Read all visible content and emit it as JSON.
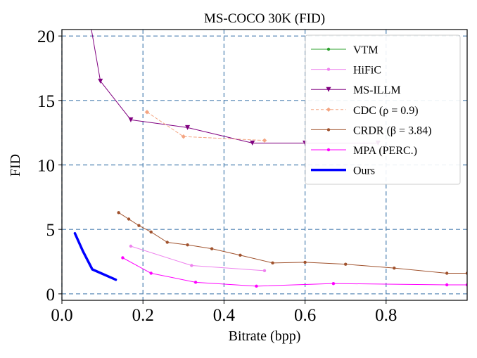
{
  "chart_data": {
    "type": "line",
    "title": "MS-COCO 30K (FID)",
    "xlabel": "Bitrate (bpp)",
    "ylabel": "FID",
    "xlim": [
      0.0,
      1.0
    ],
    "ylim": [
      -0.5,
      20.5
    ],
    "x_ticks": [
      0.0,
      0.2,
      0.4,
      0.6,
      0.8
    ],
    "y_ticks": [
      0,
      5,
      10,
      15,
      20
    ],
    "x_tick_labels": [
      "0.0",
      "0.2",
      "0.4",
      "0.6",
      "0.8"
    ],
    "y_tick_labels": [
      "0",
      "5",
      "10",
      "15",
      "20"
    ],
    "grid": true,
    "legend_position": "top-right",
    "series": [
      {
        "name": "VTM",
        "color": "#2ca02c",
        "marker": "circle",
        "line_style": "solid",
        "line_width": 1,
        "x": [],
        "y": []
      },
      {
        "name": "HiFiC",
        "color": "#ee82ee",
        "marker": "circle",
        "line_style": "solid",
        "line_width": 1,
        "x": [
          0.17,
          0.32,
          0.5
        ],
        "y": [
          3.7,
          2.2,
          1.8
        ]
      },
      {
        "name": "MS-ILLM",
        "color": "#800080",
        "marker": "triangle-down",
        "line_style": "solid",
        "line_width": 1,
        "x": [
          0.07,
          0.095,
          0.17,
          0.31,
          0.47,
          0.6,
          0.78
        ],
        "y": [
          21.0,
          16.5,
          13.5,
          12.9,
          11.7,
          11.7,
          11.7
        ]
      },
      {
        "name": "CDC (ρ = 0.9)",
        "color": "#f4a582",
        "marker": "diamond",
        "line_style": "dashed",
        "line_width": 1,
        "x": [
          0.21,
          0.3,
          0.5
        ],
        "y": [
          14.1,
          12.2,
          11.9
        ]
      },
      {
        "name": "CRDR (β = 3.84)",
        "color": "#a0522d",
        "marker": "circle",
        "line_style": "solid",
        "line_width": 1,
        "x": [
          0.14,
          0.165,
          0.19,
          0.22,
          0.26,
          0.31,
          0.37,
          0.44,
          0.52,
          0.6,
          0.7,
          0.82,
          0.95,
          1.0
        ],
        "y": [
          6.3,
          5.8,
          5.3,
          4.8,
          4.0,
          3.8,
          3.5,
          3.0,
          2.4,
          2.45,
          2.3,
          2.0,
          1.6,
          1.6
        ]
      },
      {
        "name": "MPA (PERC.)",
        "color": "#ff00ff",
        "marker": "circle",
        "line_style": "solid",
        "line_width": 1,
        "x": [
          0.15,
          0.22,
          0.33,
          0.48,
          0.67,
          0.95,
          1.0
        ],
        "y": [
          2.8,
          1.6,
          0.9,
          0.6,
          0.8,
          0.7,
          0.7
        ]
      },
      {
        "name": "Ours",
        "color": "#0000ff",
        "marker": "none",
        "line_style": "solid",
        "line_width": 3.5,
        "x": [
          0.032,
          0.052,
          0.075,
          0.133
        ],
        "y": [
          4.7,
          3.3,
          1.9,
          1.1
        ]
      }
    ]
  }
}
